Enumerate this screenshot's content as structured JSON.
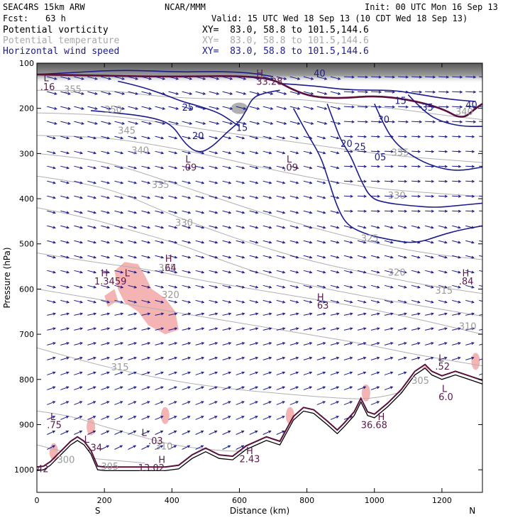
{
  "header": {
    "model": "SEAC4RS 15km ARW",
    "org": "NCAR/MMM",
    "init": "Init: 00 UTC Mon 16 Sep 13",
    "fcst_label": "Fcst:",
    "fcst_value": "63 h",
    "valid": "Valid: 15 UTC Wed 18 Sep 13 (10 CDT Wed 18 Sep 13)"
  },
  "fields": [
    {
      "name": "Potential vorticity",
      "xy": "XY=  83.0, 58.8 to 101.5,144.6",
      "color": "#000000"
    },
    {
      "name": "Potential temperature",
      "xy": "XY=  83.0, 58.8 to 101.5,144.6",
      "color": "#a8a8a8"
    },
    {
      "name": "Horizontal wind speed",
      "xy": "XY=  83.0, 58.8 to 101.5,144.6",
      "color": "#1c1c8c"
    }
  ],
  "chart_data": {
    "type": "cross-section",
    "xlabel": "Distance (km)",
    "ylabel": "Pressure (hPa)",
    "xlim": [
      0,
      1320
    ],
    "ylim": [
      1050,
      100
    ],
    "x_ticks": [
      0,
      200,
      400,
      600,
      800,
      1000,
      1200
    ],
    "y_ticks": [
      100,
      200,
      300,
      400,
      500,
      600,
      700,
      800,
      900,
      1000
    ],
    "x_ends": {
      "left": "S",
      "right": "N"
    },
    "theta_labels": [
      {
        "text": "355",
        "x": 80,
        "p": 165
      },
      {
        "text": "350",
        "x": 200,
        "p": 210
      },
      {
        "text": "345",
        "x": 240,
        "p": 256
      },
      {
        "text": "340",
        "x": 280,
        "p": 300
      },
      {
        "text": "335",
        "x": 340,
        "p": 376
      },
      {
        "text": "330",
        "x": 410,
        "p": 460
      },
      {
        "text": "325",
        "x": 360,
        "p": 560
      },
      {
        "text": "320",
        "x": 370,
        "p": 620
      },
      {
        "text": "315",
        "x": 220,
        "p": 780
      },
      {
        "text": "310",
        "x": 350,
        "p": 955
      },
      {
        "text": "305",
        "x": 190,
        "p": 1000
      },
      {
        "text": "300",
        "x": 60,
        "p": 985
      },
      {
        "text": "330",
        "x": 1040,
        "p": 400
      },
      {
        "text": "325",
        "x": 960,
        "p": 495
      },
      {
        "text": "320",
        "x": 1040,
        "p": 570
      },
      {
        "text": "315",
        "x": 1180,
        "p": 610
      },
      {
        "text": "310",
        "x": 1250,
        "p": 690
      },
      {
        "text": "305",
        "x": 1110,
        "p": 810
      },
      {
        "text": "340",
        "x": 1240,
        "p": 215
      },
      {
        "text": "335",
        "x": 1050,
        "p": 305
      }
    ],
    "speed_labels": [
      {
        "text": "40",
        "x": 820,
        "p": 130
      },
      {
        "text": "35",
        "x": 1140,
        "p": 205
      },
      {
        "text": "40",
        "x": 1270,
        "p": 200
      },
      {
        "text": "30",
        "x": 1010,
        "p": 232
      },
      {
        "text": "25",
        "x": 430,
        "p": 205
      },
      {
        "text": "20",
        "x": 460,
        "p": 268
      },
      {
        "text": "15",
        "x": 590,
        "p": 250
      },
      {
        "text": "15",
        "x": 1060,
        "p": 190
      },
      {
        "text": "20",
        "x": 900,
        "p": 285
      },
      {
        "text": "25",
        "x": 940,
        "p": 292
      },
      {
        "text": "05",
        "x": 1000,
        "p": 315
      }
    ],
    "extrema": [
      {
        "text": "L",
        "x": 20,
        "p": 140
      },
      {
        "text": ".16",
        "x": 10,
        "p": 160
      },
      {
        "text": "H",
        "x": 650,
        "p": 130
      },
      {
        "text": "33.28",
        "x": 650,
        "p": 148
      },
      {
        "text": "L",
        "x": 440,
        "p": 320
      },
      {
        "text": ".09",
        "x": 430,
        "p": 338
      },
      {
        "text": "L",
        "x": 740,
        "p": 320
      },
      {
        "text": ".09",
        "x": 730,
        "p": 338
      },
      {
        "text": "H",
        "x": 380,
        "p": 540
      },
      {
        "text": ".64",
        "x": 370,
        "p": 560
      },
      {
        "text": "H",
        "x": 190,
        "p": 572
      },
      {
        "text": "L",
        "x": 260,
        "p": 572
      },
      {
        "text": "1.3459",
        "x": 170,
        "p": 590
      },
      {
        "text": "H",
        "x": 830,
        "p": 625
      },
      {
        "text": "63",
        "x": 830,
        "p": 643
      },
      {
        "text": "H",
        "x": 1260,
        "p": 572
      },
      {
        "text": ".84",
        "x": 1250,
        "p": 590
      },
      {
        "text": "L",
        "x": 1190,
        "p": 760
      },
      {
        "text": ".52",
        "x": 1180,
        "p": 778
      },
      {
        "text": "L",
        "x": 1200,
        "p": 828
      },
      {
        "text": "6.0",
        "x": 1190,
        "p": 846
      },
      {
        "text": "L",
        "x": 40,
        "p": 890
      },
      {
        "text": ".75",
        "x": 30,
        "p": 908
      },
      {
        "text": "L",
        "x": 140,
        "p": 940
      },
      {
        "text": ".34",
        "x": 150,
        "p": 958
      },
      {
        "text": "L",
        "x": 310,
        "p": 925
      },
      {
        "text": ".03",
        "x": 330,
        "p": 943
      },
      {
        "text": "H",
        "x": 1010,
        "p": 890
      },
      {
        "text": "36.68",
        "x": 960,
        "p": 908
      },
      {
        "text": "H",
        "x": 620,
        "p": 965
      },
      {
        "text": "2.43",
        "x": 600,
        "p": 983
      },
      {
        "text": "H",
        "x": 360,
        "p": 985
      },
      {
        "text": "13.02",
        "x": 300,
        "p": 1003
      },
      {
        "text": "42",
        "x": 0,
        "p": 1005
      }
    ],
    "terrain": [
      [
        0,
        1002
      ],
      [
        20,
        1000
      ],
      [
        40,
        990
      ],
      [
        60,
        975
      ],
      [
        80,
        960
      ],
      [
        100,
        945
      ],
      [
        120,
        935
      ],
      [
        140,
        945
      ],
      [
        160,
        965
      ],
      [
        180,
        1000
      ],
      [
        200,
        1002
      ],
      [
        300,
        1002
      ],
      [
        380,
        1002
      ],
      [
        420,
        998
      ],
      [
        460,
        975
      ],
      [
        500,
        960
      ],
      [
        540,
        975
      ],
      [
        580,
        978
      ],
      [
        620,
        955
      ],
      [
        680,
        935
      ],
      [
        720,
        945
      ],
      [
        760,
        890
      ],
      [
        790,
        870
      ],
      [
        820,
        875
      ],
      [
        860,
        900
      ],
      [
        890,
        920
      ],
      [
        910,
        905
      ],
      [
        940,
        880
      ],
      [
        960,
        850
      ],
      [
        980,
        880
      ],
      [
        1000,
        885
      ],
      [
        1040,
        860
      ],
      [
        1080,
        830
      ],
      [
        1120,
        790
      ],
      [
        1150,
        775
      ],
      [
        1170,
        790
      ],
      [
        1200,
        800
      ],
      [
        1240,
        790
      ],
      [
        1280,
        800
      ],
      [
        1320,
        810
      ],
      [
        1320,
        1050
      ],
      [
        0,
        1050
      ]
    ],
    "pv_regions": [
      [
        [
          230,
          560
        ],
        [
          260,
          540
        ],
        [
          300,
          545
        ],
        [
          320,
          570
        ],
        [
          340,
          600
        ],
        [
          380,
          620
        ],
        [
          410,
          650
        ],
        [
          420,
          690
        ],
        [
          380,
          700
        ],
        [
          330,
          680
        ],
        [
          300,
          650
        ],
        [
          260,
          630
        ],
        [
          240,
          600
        ]
      ],
      [
        [
          200,
          615
        ],
        [
          230,
          600
        ],
        [
          240,
          625
        ],
        [
          210,
          640
        ]
      ]
    ],
    "speed_contours": [
      [
        [
          160,
          205
        ],
        [
          240,
          210
        ],
        [
          340,
          220
        ],
        [
          400,
          235
        ],
        [
          440,
          280
        ],
        [
          480,
          300
        ],
        [
          520,
          285
        ],
        [
          560,
          255
        ],
        [
          600,
          230
        ],
        [
          620,
          205
        ],
        [
          640,
          175
        ],
        [
          680,
          165
        ],
        [
          720,
          160
        ]
      ],
      [
        [
          240,
          140
        ],
        [
          300,
          150
        ],
        [
          380,
          170
        ],
        [
          430,
          185
        ],
        [
          480,
          195
        ],
        [
          540,
          210
        ],
        [
          580,
          230
        ],
        [
          600,
          240
        ]
      ],
      [
        [
          760,
          200
        ],
        [
          800,
          255
        ],
        [
          840,
          305
        ],
        [
          860,
          350
        ],
        [
          890,
          420
        ],
        [
          920,
          460
        ],
        [
          980,
          480
        ],
        [
          1040,
          490
        ],
        [
          1120,
          500
        ],
        [
          1200,
          480
        ],
        [
          1250,
          470
        ],
        [
          1320,
          460
        ]
      ],
      [
        [
          860,
          190
        ],
        [
          880,
          230
        ],
        [
          900,
          270
        ],
        [
          930,
          305
        ],
        [
          960,
          360
        ],
        [
          990,
          400
        ],
        [
          1040,
          410
        ],
        [
          1100,
          415
        ],
        [
          1180,
          420
        ],
        [
          1250,
          415
        ],
        [
          1320,
          410
        ]
      ],
      [
        [
          1000,
          190
        ],
        [
          1030,
          240
        ],
        [
          1060,
          275
        ],
        [
          1100,
          300
        ],
        [
          1160,
          325
        ],
        [
          1240,
          340
        ],
        [
          1320,
          330
        ]
      ],
      [
        [
          1100,
          170
        ],
        [
          1150,
          210
        ],
        [
          1200,
          230
        ],
        [
          1260,
          240
        ],
        [
          1320,
          240
        ]
      ],
      [
        [
          720,
          145
        ],
        [
          820,
          150
        ],
        [
          900,
          158
        ],
        [
          980,
          160
        ],
        [
          1060,
          160
        ],
        [
          1140,
          170
        ],
        [
          1220,
          180
        ],
        [
          1300,
          185
        ]
      ],
      [
        [
          0,
          125
        ],
        [
          120,
          120
        ],
        [
          260,
          115
        ],
        [
          420,
          120
        ],
        [
          540,
          118
        ],
        [
          640,
          122
        ],
        [
          700,
          130
        ]
      ]
    ],
    "theta_lines": [
      [
        [
          0,
          160
        ],
        [
          100,
          160
        ],
        [
          240,
          162
        ],
        [
          340,
          172
        ],
        [
          460,
          178
        ],
        [
          600,
          180
        ],
        [
          760,
          178
        ],
        [
          900,
          190
        ],
        [
          1060,
          200
        ],
        [
          1200,
          215
        ],
        [
          1320,
          225
        ]
      ],
      [
        [
          0,
          210
        ],
        [
          120,
          212
        ],
        [
          240,
          218
        ],
        [
          360,
          230
        ],
        [
          480,
          245
        ],
        [
          600,
          258
        ],
        [
          720,
          270
        ],
        [
          860,
          285
        ],
        [
          1000,
          300
        ],
        [
          1140,
          310
        ],
        [
          1320,
          320
        ]
      ],
      [
        [
          0,
          260
        ],
        [
          140,
          262
        ],
        [
          260,
          270
        ],
        [
          380,
          285
        ],
        [
          520,
          305
        ],
        [
          660,
          330
        ],
        [
          820,
          355
        ],
        [
          980,
          375
        ],
        [
          1120,
          385
        ],
        [
          1320,
          395
        ]
      ],
      [
        [
          0,
          300
        ],
        [
          140,
          310
        ],
        [
          260,
          330
        ],
        [
          380,
          360
        ],
        [
          520,
          395
        ],
        [
          660,
          430
        ],
        [
          820,
          465
        ],
        [
          980,
          495
        ],
        [
          1140,
          520
        ],
        [
          1320,
          535
        ]
      ],
      [
        [
          0,
          350
        ],
        [
          140,
          365
        ],
        [
          260,
          390
        ],
        [
          380,
          430
        ],
        [
          520,
          470
        ],
        [
          660,
          505
        ],
        [
          820,
          540
        ],
        [
          980,
          565
        ],
        [
          1140,
          590
        ],
        [
          1320,
          610
        ]
      ],
      [
        [
          0,
          420
        ],
        [
          140,
          440
        ],
        [
          280,
          470
        ],
        [
          420,
          500
        ],
        [
          560,
          540
        ],
        [
          700,
          575
        ],
        [
          860,
          600
        ],
        [
          1000,
          620
        ],
        [
          1160,
          640
        ],
        [
          1320,
          660
        ]
      ],
      [
        [
          0,
          520
        ],
        [
          160,
          540
        ],
        [
          320,
          555
        ],
        [
          480,
          580
        ],
        [
          640,
          600
        ],
        [
          800,
          620
        ],
        [
          960,
          640
        ],
        [
          1120,
          665
        ],
        [
          1320,
          700
        ]
      ],
      [
        [
          0,
          600
        ],
        [
          160,
          620
        ],
        [
          320,
          640
        ],
        [
          480,
          660
        ],
        [
          640,
          680
        ],
        [
          800,
          700
        ],
        [
          960,
          720
        ],
        [
          1120,
          745
        ],
        [
          1320,
          770
        ]
      ],
      [
        [
          0,
          730
        ],
        [
          140,
          760
        ],
        [
          280,
          785
        ],
        [
          420,
          805
        ],
        [
          560,
          820
        ],
        [
          700,
          830
        ],
        [
          860,
          840
        ],
        [
          1000,
          845
        ],
        [
          1140,
          815
        ],
        [
          1320,
          830
        ]
      ],
      [
        [
          0,
          870
        ],
        [
          100,
          880
        ],
        [
          200,
          905
        ],
        [
          300,
          925
        ],
        [
          400,
          945
        ],
        [
          500,
          955
        ],
        [
          600,
          960
        ],
        [
          700,
          955
        ]
      ],
      [
        [
          0,
          945
        ],
        [
          80,
          960
        ],
        [
          160,
          975
        ],
        [
          240,
          980
        ],
        [
          320,
          985
        ]
      ]
    ]
  }
}
